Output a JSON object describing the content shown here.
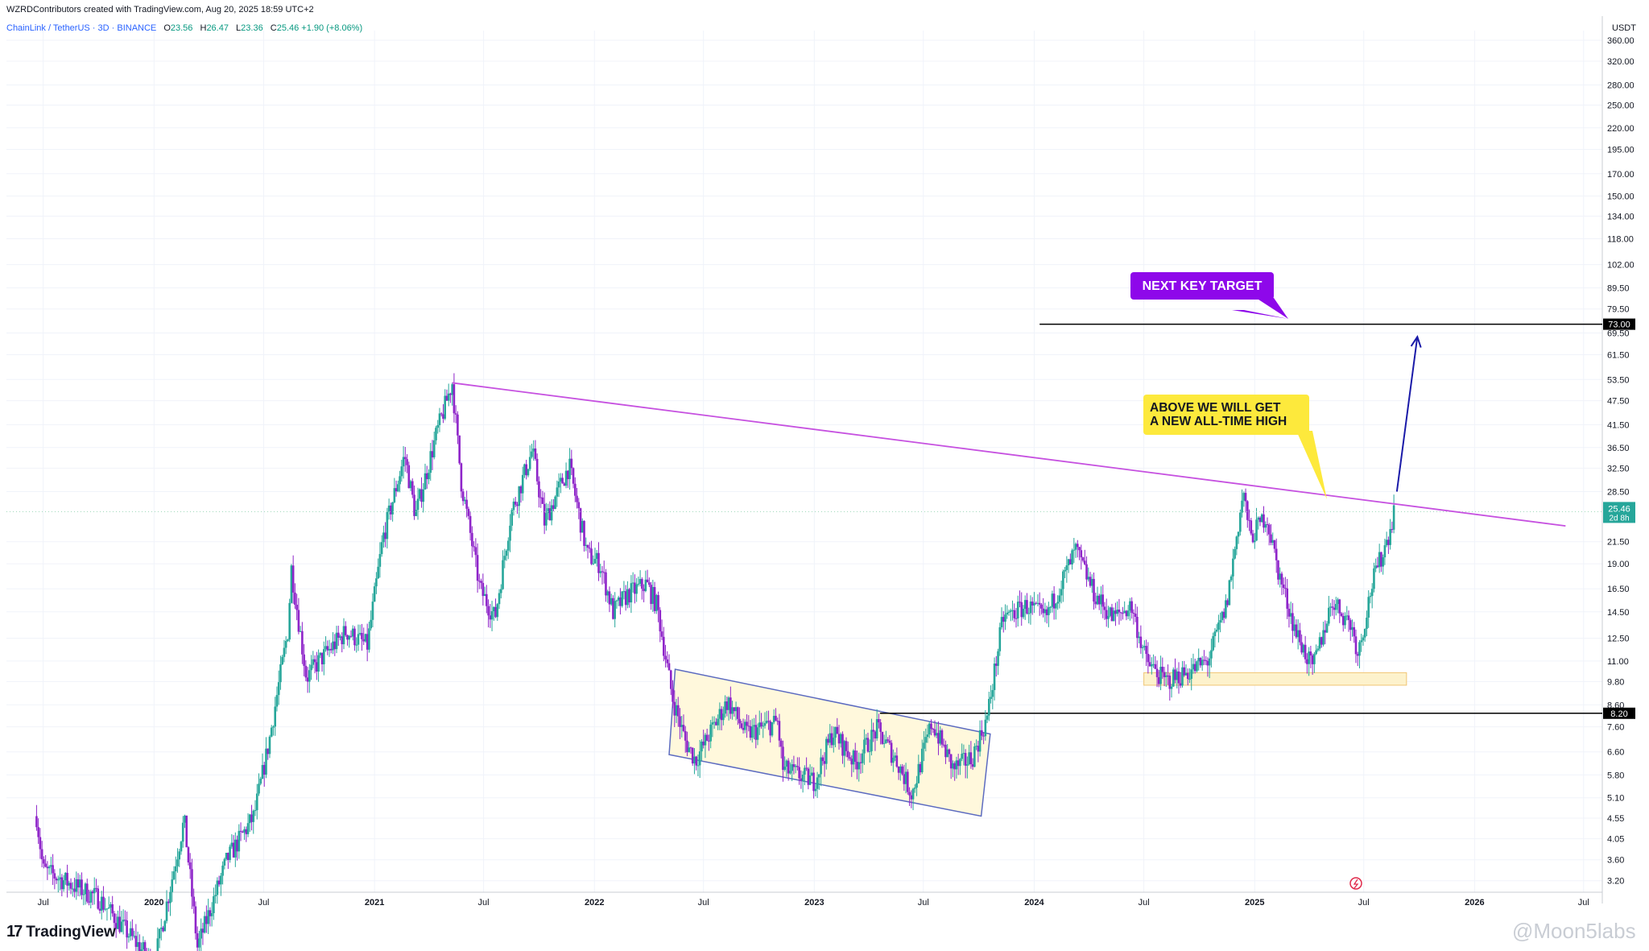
{
  "header": {
    "credit": "WZRDContributors created with TradingView.com, Aug 20, 2025 18:59 UTC+2",
    "symbol": "ChainLink / TetherUS · 3D · BINANCE",
    "ohlc": {
      "o_label": "O",
      "o": "23.56",
      "h_label": "H",
      "h": "26.47",
      "l_label": "L",
      "l": "23.36",
      "c_label": "C",
      "c": "25.46",
      "change": "+1.90 (+8.06%)"
    }
  },
  "logo": {
    "mark": "17",
    "text": "TradingView"
  },
  "watermark": "@Moon5labs",
  "colors": {
    "up": "#26a69a",
    "down": "#8e24c9",
    "trendline": "#c651e0",
    "channel_border": "#5c6bc0",
    "channel_fill": "#fff8dc",
    "target_label": "#8e08ea",
    "ath_label": "#fde93c",
    "arrow": "#1a1aa8",
    "price_tag": "#26a69a"
  },
  "chart_data": {
    "type": "candlestick",
    "title": "ChainLink / TetherUS · 3D · BINANCE",
    "y_scale": "log",
    "ylabel": "USDT",
    "ylim": [
      3.0,
      380
    ],
    "xlim": [
      "2019-05-01",
      "2026-08-01"
    ],
    "yticks": [
      "360.00",
      "320.00",
      "280.00",
      "250.00",
      "220.00",
      "195.00",
      "170.00",
      "150.00",
      "134.00",
      "118.00",
      "102.00",
      "89.50",
      "79.50",
      "69.50",
      "61.50",
      "53.50",
      "47.50",
      "41.50",
      "36.50",
      "32.50",
      "28.50",
      "21.50",
      "19.00",
      "16.50",
      "14.50",
      "12.50",
      "11.00",
      "9.80",
      "8.60",
      "7.60",
      "6.60",
      "5.80",
      "5.10",
      "4.55",
      "4.05",
      "3.60",
      "3.20"
    ],
    "xticks": [
      {
        "label": "Jul",
        "date": "2019-07-01"
      },
      {
        "label": "2020",
        "date": "2020-01-01"
      },
      {
        "label": "Jul",
        "date": "2020-07-01"
      },
      {
        "label": "2021",
        "date": "2021-01-01"
      },
      {
        "label": "Jul",
        "date": "2021-07-01"
      },
      {
        "label": "2022",
        "date": "2022-01-01"
      },
      {
        "label": "Jul",
        "date": "2022-07-01"
      },
      {
        "label": "2023",
        "date": "2023-01-01"
      },
      {
        "label": "Jul",
        "date": "2023-07-01"
      },
      {
        "label": "2024",
        "date": "2024-01-01"
      },
      {
        "label": "Jul",
        "date": "2024-07-01"
      },
      {
        "label": "2025",
        "date": "2025-01-01"
      },
      {
        "label": "Jul",
        "date": "2025-07-01"
      },
      {
        "label": "2026",
        "date": "2026-01-01"
      },
      {
        "label": "Jul",
        "date": "2026-07-01"
      }
    ],
    "close_path": [
      [
        "2019-06-20",
        4.6
      ],
      [
        "2019-07-01",
        3.4
      ],
      [
        "2019-10-01",
        2.9
      ],
      [
        "2020-01-01",
        2.0
      ],
      [
        "2020-02-20",
        4.5
      ],
      [
        "2020-03-13",
        2.2
      ],
      [
        "2020-05-01",
        3.6
      ],
      [
        "2020-06-15",
        4.6
      ],
      [
        "2020-07-10",
        7.0
      ],
      [
        "2020-08-10",
        13.0
      ],
      [
        "2020-08-16",
        18.5
      ],
      [
        "2020-09-10",
        10.0
      ],
      [
        "2020-10-01",
        11.0
      ],
      [
        "2020-11-15",
        13.0
      ],
      [
        "2020-12-20",
        12.0
      ],
      [
        "2021-01-15",
        22.0
      ],
      [
        "2021-02-20",
        35.0
      ],
      [
        "2021-03-10",
        25.0
      ],
      [
        "2021-04-15",
        40.0
      ],
      [
        "2021-05-10",
        52.5
      ],
      [
        "2021-05-25",
        30.0
      ],
      [
        "2021-06-25",
        16.5
      ],
      [
        "2021-07-20",
        14.0
      ],
      [
        "2021-08-15",
        25.0
      ],
      [
        "2021-09-20",
        36.0
      ],
      [
        "2021-10-10",
        24.0
      ],
      [
        "2021-11-20",
        33.0
      ],
      [
        "2021-12-20",
        20.0
      ],
      [
        "2022-01-10",
        19.0
      ],
      [
        "2022-02-01",
        14.5
      ],
      [
        "2022-02-25",
        16.0
      ],
      [
        "2022-03-28",
        17.0
      ],
      [
        "2022-04-15",
        15.0
      ],
      [
        "2022-05-10",
        9.0
      ],
      [
        "2022-06-01",
        7.0
      ],
      [
        "2022-06-18",
        6.3
      ],
      [
        "2022-08-10",
        8.8
      ],
      [
        "2022-09-10",
        7.3
      ],
      [
        "2022-11-01",
        7.8
      ],
      [
        "2022-11-10",
        6.0
      ],
      [
        "2023-01-01",
        5.6
      ],
      [
        "2023-02-01",
        7.4
      ],
      [
        "2023-03-10",
        6.2
      ],
      [
        "2023-04-15",
        7.5
      ],
      [
        "2023-05-20",
        6.2
      ],
      [
        "2023-06-12",
        5.2
      ],
      [
        "2023-07-15",
        7.8
      ],
      [
        "2023-08-20",
        6.0
      ],
      [
        "2023-09-20",
        6.4
      ],
      [
        "2023-10-15",
        8.0
      ],
      [
        "2023-11-10",
        14.0
      ],
      [
        "2023-12-20",
        15.0
      ],
      [
        "2024-01-20",
        14.0
      ],
      [
        "2024-03-10",
        20.5
      ],
      [
        "2024-04-10",
        16.0
      ],
      [
        "2024-05-10",
        14.0
      ],
      [
        "2024-06-10",
        15.0
      ],
      [
        "2024-07-05",
        11.0
      ],
      [
        "2024-08-05",
        9.8
      ],
      [
        "2024-09-10",
        10.3
      ],
      [
        "2024-10-15",
        11.0
      ],
      [
        "2024-11-15",
        15.0
      ],
      [
        "2024-12-13",
        28.5
      ],
      [
        "2024-12-25",
        22.0
      ],
      [
        "2025-01-20",
        25.0
      ],
      [
        "2025-02-10",
        18.0
      ],
      [
        "2025-03-10",
        13.0
      ],
      [
        "2025-04-07",
        10.5
      ],
      [
        "2025-05-10",
        15.5
      ],
      [
        "2025-06-10",
        13.5
      ],
      [
        "2025-06-22",
        11.5
      ],
      [
        "2025-07-15",
        17.0
      ],
      [
        "2025-08-10",
        22.0
      ],
      [
        "2025-08-20",
        25.46
      ]
    ],
    "last_price": "25.46",
    "countdown": "2d 8h",
    "levels": [
      {
        "label": "73.00",
        "value": 73.0
      },
      {
        "label": "8.20",
        "value": 8.2
      }
    ],
    "annotations": [
      {
        "text": "NEXT KEY TARGET"
      },
      {
        "lines": [
          "ABOVE WE WILL GET",
          "A NEW ALL-TIME HIGH"
        ]
      }
    ],
    "descending_trendline": [
      [
        "2021-05-10",
        52.5
      ],
      [
        "2026-06-01",
        23.5
      ]
    ],
    "channel": {
      "upper": [
        [
          "2022-05-15",
          10.5
        ],
        [
          "2023-10-20",
          7.3
        ]
      ],
      "lower": [
        [
          "2022-05-05",
          6.5
        ],
        [
          "2023-10-05",
          4.6
        ]
      ]
    },
    "support_zone": {
      "from": "2024-07-01",
      "to": "2025-09-10",
      "low": 9.6,
      "high": 10.3
    },
    "arrow": {
      "from": [
        "2025-08-25",
        28.5
      ],
      "to": [
        "2025-09-28",
        68.0
      ]
    }
  }
}
